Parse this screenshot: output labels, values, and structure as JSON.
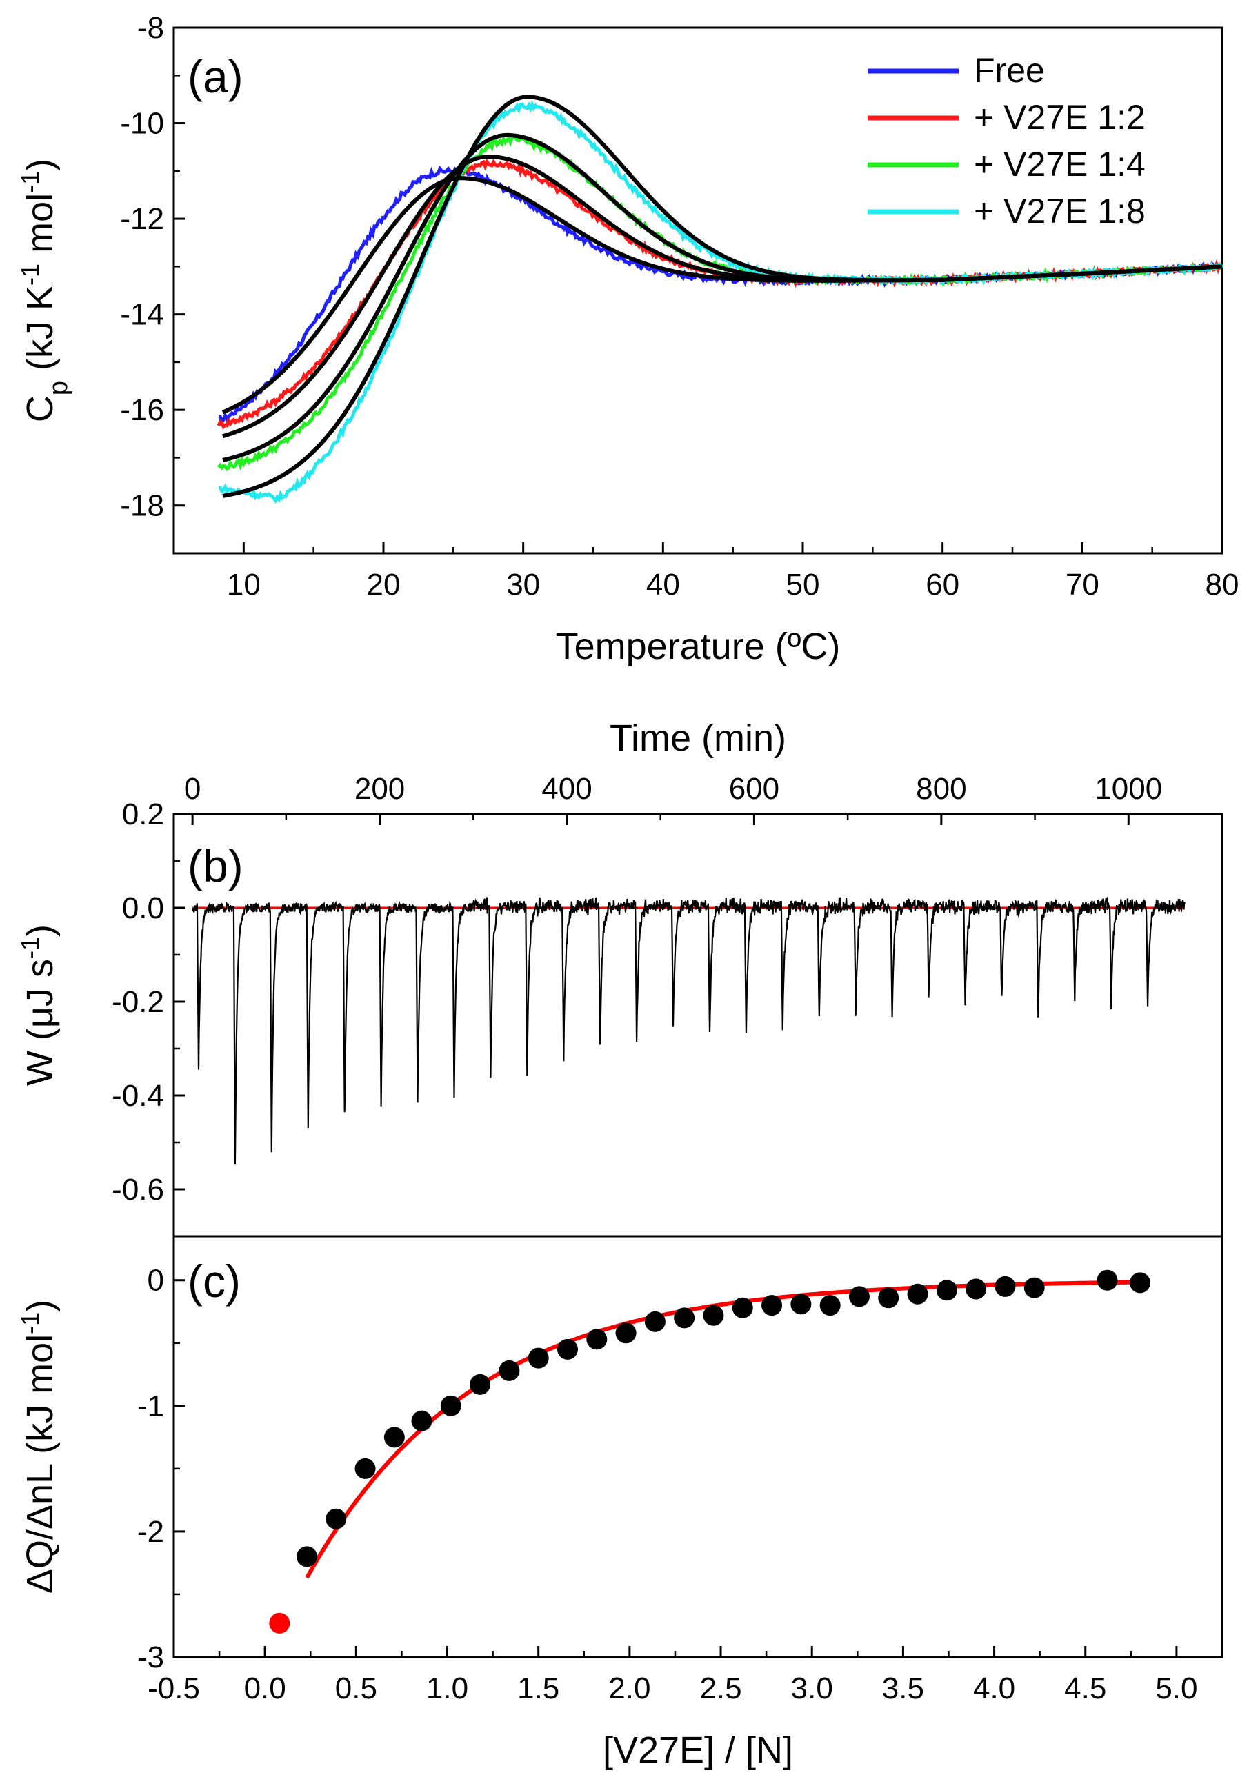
{
  "chart_data": [
    {
      "panel": "(a)",
      "type": "line",
      "xlabel": "Temperature (ºC)",
      "ylabel": {
        "main": "C",
        "sub": "p",
        "unit_a": " (kJ K",
        "sup1": "-1",
        "unit_b": " mol",
        "sup2": "-1",
        "unit_c": ")"
      },
      "xlim": [
        5,
        80
      ],
      "ylim": [
        -19,
        -8
      ],
      "xticks": [
        10,
        20,
        30,
        40,
        50,
        60,
        70,
        80
      ],
      "yticks": [
        -18,
        -16,
        -14,
        -12,
        -10,
        -8
      ],
      "legend_position": "top-right",
      "series": [
        {
          "name": "Free",
          "color": "#1f1fff",
          "peak_T": 24.5,
          "peak_Cp": -11.0,
          "low_T": 8.5,
          "low_Cp": -16.2
        },
        {
          "name": "+ V27E 1:2",
          "color": "#ff1a1a",
          "peak_T": 27.5,
          "peak_Cp": -10.85,
          "low_T": 8.5,
          "low_Cp": -16.3
        },
        {
          "name": "+ V27E 1:4",
          "color": "#22ee22",
          "peak_T": 29.0,
          "peak_Cp": -10.35,
          "low_T": 8.5,
          "low_Cp": -17.2
        },
        {
          "name": "+ V27E 1:8",
          "color": "#22e8f0",
          "peak_T": 30.0,
          "peak_Cp": -9.65,
          "low_T": 12.5,
          "low_Cp": -17.85
        }
      ],
      "fits": [
        {
          "peak_T": 25.5,
          "peak_Cp": -11.15,
          "low_Cp": -16.05
        },
        {
          "peak_T": 27.5,
          "peak_Cp": -10.7,
          "low_Cp": -16.55
        },
        {
          "peak_T": 28.8,
          "peak_Cp": -10.25,
          "low_Cp": -17.05
        },
        {
          "peak_T": 30.3,
          "peak_Cp": -9.45,
          "low_Cp": -17.8
        }
      ],
      "baseline": {
        "T": [
          50,
          60,
          70,
          80
        ],
        "Cp": [
          -13.3,
          -13.28,
          -13.15,
          -13.0
        ]
      },
      "fit_color": "#000000"
    },
    {
      "panel": "(b)",
      "type": "line",
      "xlabel_top": "Time (min)",
      "ylabel": {
        "main": "W (",
        "mu": "μJ s",
        "sup": "-1",
        "end": ")"
      },
      "xlim": [
        -20,
        1100
      ],
      "ylim": [
        -0.7,
        0.2
      ],
      "xticks": [
        0,
        200,
        400,
        600,
        800,
        1000
      ],
      "yticks": [
        0.2,
        0.0,
        -0.2,
        -0.4,
        -0.6
      ],
      "baseline_color": "#ff0000",
      "trace_color": "#000000",
      "injections": {
        "times": [
          5,
          44,
          83,
          122,
          161,
          200,
          239,
          278,
          317,
          356,
          395,
          434,
          473,
          512,
          551,
          590,
          629,
          668,
          707,
          746,
          785,
          824,
          863,
          902,
          941,
          980,
          1019
        ],
        "peaks": [
          -0.34,
          -0.54,
          -0.52,
          -0.47,
          -0.44,
          -0.42,
          -0.42,
          -0.4,
          -0.35,
          -0.35,
          -0.33,
          -0.3,
          -0.28,
          -0.26,
          -0.28,
          -0.27,
          -0.26,
          -0.24,
          -0.23,
          -0.23,
          -0.2,
          -0.21,
          -0.21,
          -0.23,
          -0.19,
          -0.21,
          -0.22
        ]
      },
      "trace_end": 1060
    },
    {
      "panel": "(c)",
      "type": "scatter",
      "xlabel": "[V27E] / [N]",
      "ylabel": {
        "main": "ΔQ/ΔnL (kJ mol",
        "sup": "-1",
        "end": ")"
      },
      "xlim": [
        -0.5,
        5.25
      ],
      "ylim": [
        -3,
        0.35
      ],
      "xticks": [
        -0.5,
        0.0,
        0.5,
        1.0,
        1.5,
        2.0,
        2.5,
        3.0,
        3.5,
        4.0,
        4.5,
        5.0
      ],
      "yticks": [
        0,
        -1,
        -2,
        -3
      ],
      "points_x": [
        0.23,
        0.39,
        0.55,
        0.71,
        0.86,
        1.02,
        1.18,
        1.34,
        1.5,
        1.66,
        1.82,
        1.98,
        2.14,
        2.3,
        2.46,
        2.62,
        2.78,
        2.94,
        3.1,
        3.26,
        3.42,
        3.58,
        3.74,
        3.9,
        4.06,
        4.22,
        4.62,
        4.8
      ],
      "points_y": [
        -2.2,
        -1.9,
        -1.5,
        -1.25,
        -1.12,
        -1.0,
        -0.83,
        -0.72,
        -0.62,
        -0.55,
        -0.47,
        -0.42,
        -0.33,
        -0.3,
        -0.28,
        -0.22,
        -0.2,
        -0.19,
        -0.2,
        -0.13,
        -0.14,
        -0.11,
        -0.08,
        -0.07,
        -0.05,
        -0.06,
        0.0,
        -0.02
      ],
      "excluded_point": {
        "x": 0.08,
        "y": -2.73,
        "color": "#ff0000"
      },
      "fit": {
        "x_start": 0.23,
        "x_end": 4.8,
        "A": -3.05,
        "k": 1.1,
        "color": "#ff0000"
      },
      "point_color": "#000000"
    }
  ]
}
